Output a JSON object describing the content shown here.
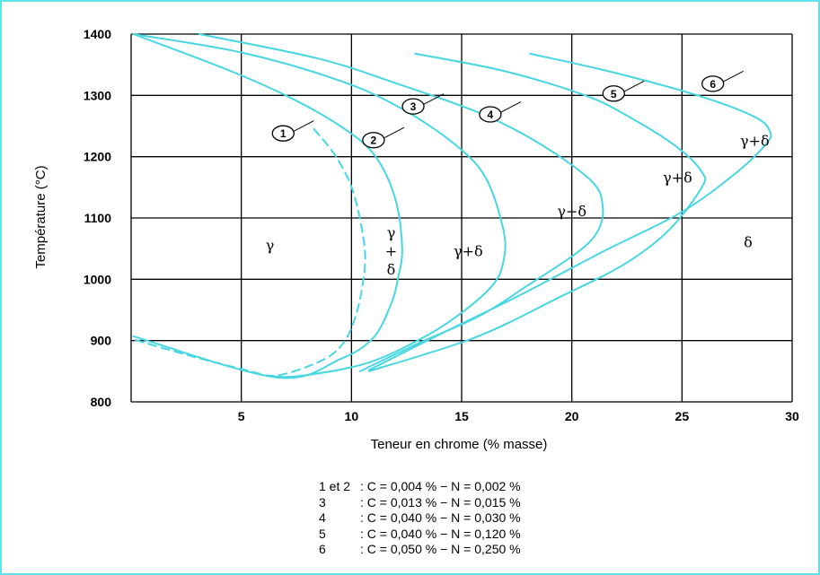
{
  "chart_data": {
    "type": "line",
    "xlabel": "Teneur en chrome (% masse)",
    "ylabel": "Température (°C)",
    "xlim": [
      0,
      30
    ],
    "ylim": [
      800,
      1400
    ],
    "x_ticks": [
      "5",
      "10",
      "15",
      "20",
      "25",
      "30"
    ],
    "y_ticks": [
      "800",
      "900",
      "1000",
      "1100",
      "1200",
      "1300",
      "1400"
    ],
    "grid": true,
    "line_color": "#47d6e2",
    "series": [
      {
        "name": "1",
        "dashed": true,
        "points": [
          [
            8.3,
            1245
          ],
          [
            9.3,
            1200
          ],
          [
            10.1,
            1140
          ],
          [
            10.6,
            1050
          ],
          [
            10.5,
            990
          ],
          [
            10.1,
            930
          ],
          [
            9.5,
            890
          ],
          [
            8.5,
            865
          ],
          [
            6.6,
            843
          ],
          [
            5.2,
            852
          ],
          [
            2.6,
            876
          ],
          [
            0.1,
            902
          ]
        ]
      },
      {
        "name": "2",
        "dashed": false,
        "points": [
          [
            0.1,
            1400
          ],
          [
            4.5,
            1340
          ],
          [
            7.3,
            1295
          ],
          [
            9.7,
            1245
          ],
          [
            11.1,
            1200
          ],
          [
            12.0,
            1130
          ],
          [
            12.3,
            1050
          ],
          [
            12.1,
            1000
          ],
          [
            11.8,
            960
          ],
          [
            11.0,
            905
          ],
          [
            9.5,
            870
          ],
          [
            6.6,
            840
          ],
          [
            0.1,
            907
          ]
        ]
      },
      {
        "name": "3",
        "dashed": false,
        "points": [
          [
            0.1,
            1400
          ],
          [
            5.0,
            1370
          ],
          [
            9.4,
            1325
          ],
          [
            12.2,
            1280
          ],
          [
            14.7,
            1220
          ],
          [
            16.1,
            1165
          ],
          [
            16.9,
            1080
          ],
          [
            16.9,
            1030
          ],
          [
            16.4,
            990
          ],
          [
            14.8,
            940
          ],
          [
            13.0,
            900
          ],
          [
            10.6,
            862
          ],
          [
            7.6,
            842
          ],
          [
            6.2,
            842
          ]
        ]
      },
      {
        "name": "4",
        "dashed": false,
        "points": [
          [
            3.1,
            1400
          ],
          [
            8.5,
            1360
          ],
          [
            12.0,
            1320
          ],
          [
            15.9,
            1270
          ],
          [
            18.6,
            1220
          ],
          [
            20.9,
            1160
          ],
          [
            21.4,
            1120
          ],
          [
            21.2,
            1080
          ],
          [
            20.3,
            1045
          ],
          [
            18.0,
            990
          ],
          [
            15.8,
            940
          ],
          [
            13.0,
            895
          ],
          [
            10.4,
            850
          ]
        ]
      },
      {
        "name": "5",
        "dashed": false,
        "points": [
          [
            12.9,
            1368
          ],
          [
            16.9,
            1340
          ],
          [
            20.6,
            1300
          ],
          [
            22.6,
            1265
          ],
          [
            24.8,
            1215
          ],
          [
            25.9,
            1175
          ],
          [
            25.9,
            1150
          ],
          [
            24.4,
            1080
          ],
          [
            22.4,
            1025
          ],
          [
            19.4,
            970
          ],
          [
            15.6,
            905
          ],
          [
            10.8,
            850
          ]
        ]
      },
      {
        "name": "6",
        "dashed": false,
        "points": [
          [
            18.1,
            1368
          ],
          [
            21.6,
            1340
          ],
          [
            25.7,
            1300
          ],
          [
            28.3,
            1265
          ],
          [
            29.0,
            1240
          ],
          [
            28.8,
            1220
          ],
          [
            27.5,
            1175
          ],
          [
            25.0,
            1110
          ],
          [
            21.4,
            1045
          ],
          [
            17.7,
            975
          ],
          [
            14.0,
            910
          ],
          [
            10.8,
            852
          ]
        ]
      }
    ],
    "callouts": [
      {
        "label": "1",
        "x": 6.9,
        "y": 1238
      },
      {
        "label": "2",
        "x": 11.0,
        "y": 1227
      },
      {
        "label": "3",
        "x": 12.8,
        "y": 1282
      },
      {
        "label": "4",
        "x": 16.3,
        "y": 1269
      },
      {
        "label": "5",
        "x": 21.9,
        "y": 1303
      },
      {
        "label": "6",
        "x": 26.4,
        "y": 1319
      }
    ],
    "region_labels": [
      {
        "id": "gamma",
        "text": "γ",
        "x": 6.3,
        "y": 1055
      },
      {
        "id": "g-top",
        "text": "γ",
        "x": 11.8,
        "y": 1075
      },
      {
        "id": "plus",
        "text": "+",
        "x": 11.8,
        "y": 1045
      },
      {
        "id": "d-bot",
        "text": "δ",
        "x": 11.8,
        "y": 1015
      },
      {
        "id": "gd-3",
        "text": "γ+δ",
        "x": 15.3,
        "y": 1045
      },
      {
        "id": "gd-4",
        "text": "γ+δ",
        "x": 20.0,
        "y": 1110
      },
      {
        "id": "gd-5",
        "text": "γ+δ",
        "x": 24.8,
        "y": 1165
      },
      {
        "id": "gd-6",
        "text": "γ+δ",
        "x": 28.3,
        "y": 1225
      },
      {
        "id": "delta",
        "text": "δ",
        "x": 28.0,
        "y": 1060
      }
    ]
  },
  "legend": [
    {
      "key": "1 et 2",
      "text": ": C = 0,004 % − N = 0,002 %"
    },
    {
      "key": "3",
      "text": ": C = 0,013 % − N = 0,015 %"
    },
    {
      "key": "4",
      "text": ": C = 0,040 % − N = 0,030 %"
    },
    {
      "key": "5",
      "text": ": C = 0,040 % − N = 0,120 %"
    },
    {
      "key": "6",
      "text": ": C = 0,050 % − N = 0,250 %"
    }
  ]
}
